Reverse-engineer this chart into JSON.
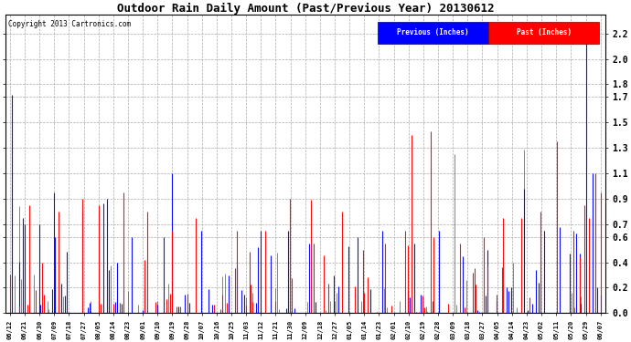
{
  "title": "Outdoor Rain Daily Amount (Past/Previous Year) 20130612",
  "copyright": "Copyright 2013 Cartronics.com",
  "legend_labels": [
    "Previous (Inches)",
    "Past (Inches)"
  ],
  "yticks": [
    0.0,
    0.2,
    0.4,
    0.6,
    0.7,
    0.9,
    1.1,
    1.3,
    1.5,
    1.7,
    1.8,
    2.0,
    2.2
  ],
  "ylim": [
    0.0,
    2.35
  ],
  "background_color": "#ffffff",
  "grid_color": "#aaaaaa",
  "x_labels": [
    "06/12",
    "06/21",
    "06/30",
    "07/09",
    "07/18",
    "07/27",
    "08/05",
    "08/14",
    "08/23",
    "09/01",
    "09/10",
    "09/19",
    "09/28",
    "10/07",
    "10/16",
    "10/25",
    "11/03",
    "11/12",
    "11/21",
    "11/30",
    "12/09",
    "12/18",
    "12/27",
    "01/05",
    "01/14",
    "01/23",
    "02/01",
    "02/10",
    "02/19",
    "02/28",
    "03/09",
    "03/18",
    "03/27",
    "04/05",
    "04/14",
    "04/23",
    "05/02",
    "05/11",
    "05/20",
    "05/29",
    "06/07"
  ],
  "n_points": 366,
  "figwidth": 6.9,
  "figheight": 3.75,
  "dpi": 100
}
